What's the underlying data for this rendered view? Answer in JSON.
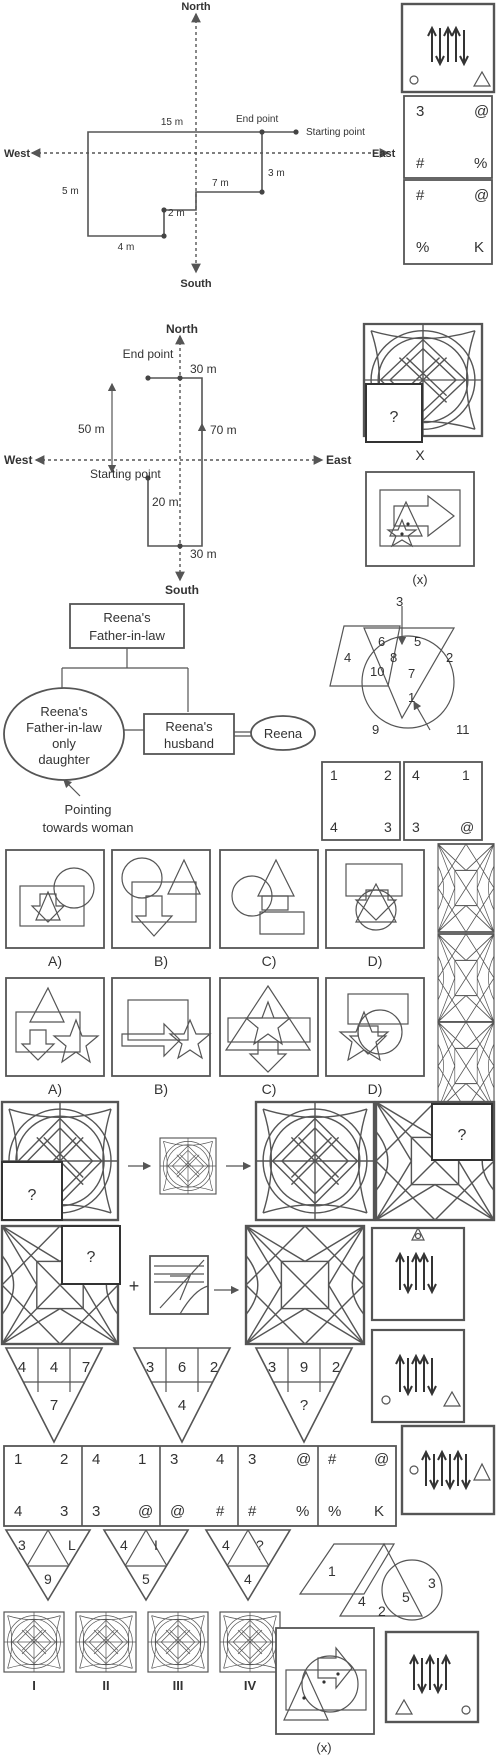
{
  "compass1": {
    "north": "North",
    "south": "South",
    "west": "West",
    "east": "East"
  },
  "dir1": {
    "m15": "15 m",
    "end": "End point",
    "start": "Starting point",
    "m5": "5 m",
    "m7": "7 m",
    "m3": "3 m",
    "m2": "2 m",
    "m4": "4 m"
  },
  "compass2": {
    "north": "North",
    "south": "South",
    "west": "West",
    "east": "East"
  },
  "dir2": {
    "end": "End point",
    "m30a": "30 m",
    "m50": "50 m",
    "m70": "70 m",
    "start": "Starting point",
    "m20": "20 m",
    "m30b": "30 m"
  },
  "family": {
    "fil1": "Reena's",
    "fil2": "Father-in-law",
    "dau1": "Reena's",
    "dau2": "Father-in-law",
    "dau3": "only",
    "dau4": "daughter",
    "hus1": "Reena's",
    "hus2": "husband",
    "reena": "Reena",
    "point1": "Pointing",
    "point2": "towards woman"
  },
  "right_col": {
    "card1_corners": [
      "3",
      "@",
      "#",
      "%"
    ],
    "card2_corners": [
      "#",
      "@",
      "%",
      "K"
    ],
    "q_mark": "?",
    "x_label": "X",
    "x_label2": "(x)",
    "venn_nums": [
      "3",
      "6",
      "5",
      "4",
      "8",
      "2",
      "10",
      "7",
      "9",
      "1",
      "11"
    ],
    "grid_a": [
      "1",
      "2",
      "4",
      "3"
    ],
    "grid_b": [
      "4",
      "1",
      "3",
      "@"
    ]
  },
  "options_row1": [
    "A)",
    "B)",
    "C)",
    "D)"
  ],
  "options_row2": [
    "A)",
    "B)",
    "C)",
    "D)"
  ],
  "qmarks": [
    "?",
    "?",
    "?"
  ],
  "operators": {
    "plus": "+"
  },
  "triangles": [
    {
      "top": [
        "4",
        "4",
        "7"
      ],
      "bottom": "7"
    },
    {
      "top": [
        "3",
        "6",
        "2"
      ],
      "bottom": "4"
    },
    {
      "top": [
        "3",
        "9",
        "2"
      ],
      "bottom": "?"
    }
  ],
  "strip": [
    [
      "1",
      "2",
      "4",
      "3"
    ],
    [
      "4",
      "1",
      "3",
      "@"
    ],
    [
      "3",
      "4",
      "@",
      "#"
    ],
    [
      "3",
      "@",
      "#",
      "%"
    ],
    [
      "#",
      "@",
      "%",
      "K"
    ]
  ],
  "small_tri": [
    {
      "a": "3",
      "b": "L",
      "c": "9"
    },
    {
      "a": "4",
      "b": "I",
      "c": "5"
    },
    {
      "a": "4",
      "b": "?",
      "c": "4"
    }
  ],
  "shapes_nums": [
    "1",
    "4",
    "2",
    "5",
    "3"
  ],
  "roman": [
    "I",
    "II",
    "III",
    "IV"
  ],
  "x_bottom": "(x)"
}
